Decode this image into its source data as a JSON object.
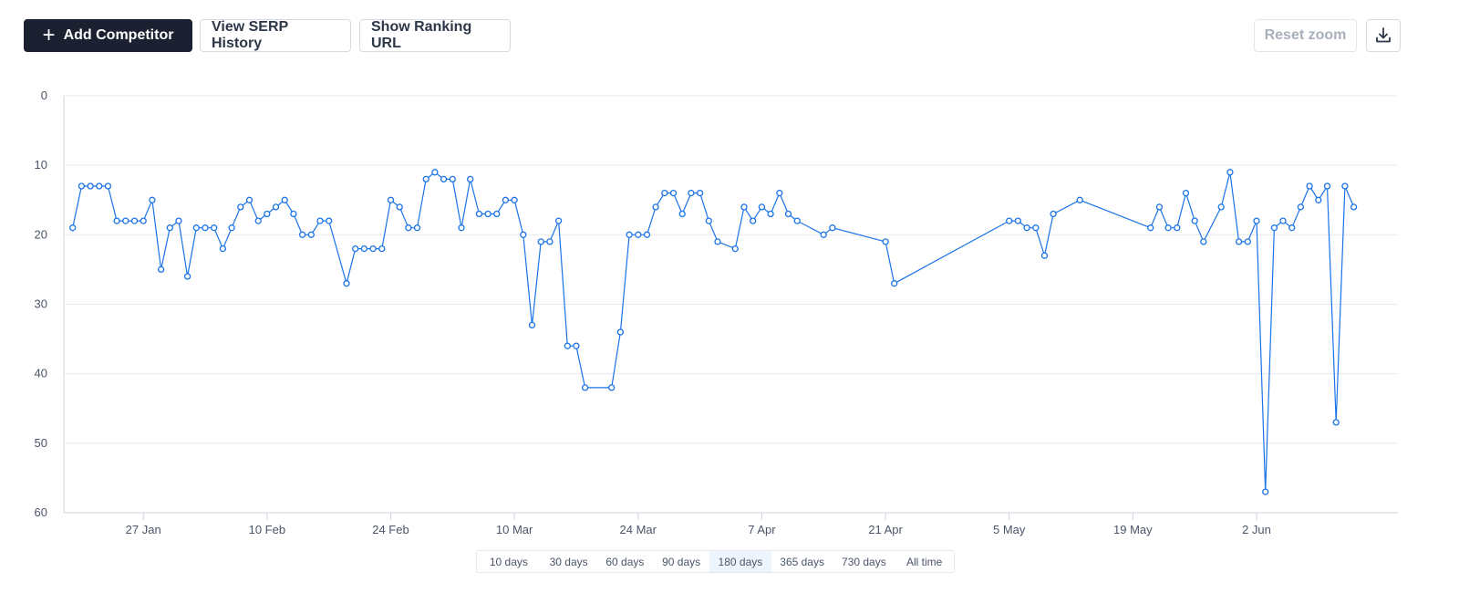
{
  "toolbar": {
    "add_competitor_label": "Add Competitor",
    "serp_history_label": "View SERP History",
    "ranking_url_label": "Show Ranking URL",
    "reset_zoom_label": "Reset zoom",
    "download_icon": "download-icon",
    "add_icon": "plus-icon"
  },
  "colors": {
    "series": "#1a73e8",
    "primary_button": "#1b2131",
    "grid": "#e6e9ee"
  },
  "range_selector": {
    "options": [
      "10 days",
      "30 days",
      "60 days",
      "90 days",
      "180 days",
      "365 days",
      "730 days",
      "All time"
    ],
    "selected": "180 days"
  },
  "chart_data": {
    "type": "line",
    "title": "",
    "xlabel": "",
    "ylabel": "",
    "y_reversed": true,
    "ylim": [
      0,
      60
    ],
    "y_ticks": [
      0,
      10,
      20,
      30,
      40,
      50,
      60
    ],
    "xlim": [
      "2025-01-18",
      "2025-06-18"
    ],
    "x_ticks": [
      {
        "date": "2025-01-27",
        "label": "27 Jan"
      },
      {
        "date": "2025-02-10",
        "label": "10 Feb"
      },
      {
        "date": "2025-02-24",
        "label": "24 Feb"
      },
      {
        "date": "2025-03-10",
        "label": "10 Mar"
      },
      {
        "date": "2025-03-24",
        "label": "24 Mar"
      },
      {
        "date": "2025-04-07",
        "label": "7 Apr"
      },
      {
        "date": "2025-04-21",
        "label": "21 Apr"
      },
      {
        "date": "2025-05-05",
        "label": "5 May"
      },
      {
        "date": "2025-05-19",
        "label": "19 May"
      },
      {
        "date": "2025-06-02",
        "label": "2 Jun"
      }
    ],
    "grid": true,
    "series": [
      {
        "points": [
          [
            "2025-01-19",
            19
          ],
          [
            "2025-01-20",
            13
          ],
          [
            "2025-01-21",
            13
          ],
          [
            "2025-01-22",
            13
          ],
          [
            "2025-01-23",
            13
          ],
          [
            "2025-01-24",
            18
          ],
          [
            "2025-01-25",
            18
          ],
          [
            "2025-01-26",
            18
          ],
          [
            "2025-01-27",
            18
          ],
          [
            "2025-01-28",
            15
          ],
          [
            "2025-01-29",
            25
          ],
          [
            "2025-01-30",
            19
          ],
          [
            "2025-01-31",
            18
          ],
          [
            "2025-02-01",
            26
          ],
          [
            "2025-02-02",
            19
          ],
          [
            "2025-02-03",
            19
          ],
          [
            "2025-02-04",
            19
          ],
          [
            "2025-02-05",
            22
          ],
          [
            "2025-02-06",
            19
          ],
          [
            "2025-02-07",
            16
          ],
          [
            "2025-02-08",
            15
          ],
          [
            "2025-02-09",
            18
          ],
          [
            "2025-02-10",
            17
          ],
          [
            "2025-02-11",
            16
          ],
          [
            "2025-02-12",
            15
          ],
          [
            "2025-02-13",
            17
          ],
          [
            "2025-02-14",
            20
          ],
          [
            "2025-02-15",
            20
          ],
          [
            "2025-02-16",
            18
          ],
          [
            "2025-02-17",
            18
          ],
          [
            "2025-02-19",
            27
          ],
          [
            "2025-02-20",
            22
          ],
          [
            "2025-02-21",
            22
          ],
          [
            "2025-02-22",
            22
          ],
          [
            "2025-02-23",
            22
          ],
          [
            "2025-02-24",
            15
          ],
          [
            "2025-02-25",
            16
          ],
          [
            "2025-02-26",
            19
          ],
          [
            "2025-02-27",
            19
          ],
          [
            "2025-02-28",
            12
          ],
          [
            "2025-03-01",
            11
          ],
          [
            "2025-03-02",
            12
          ],
          [
            "2025-03-03",
            12
          ],
          [
            "2025-03-04",
            19
          ],
          [
            "2025-03-05",
            12
          ],
          [
            "2025-03-06",
            17
          ],
          [
            "2025-03-07",
            17
          ],
          [
            "2025-03-08",
            17
          ],
          [
            "2025-03-09",
            15
          ],
          [
            "2025-03-10",
            15
          ],
          [
            "2025-03-11",
            20
          ],
          [
            "2025-03-12",
            33
          ],
          [
            "2025-03-13",
            21
          ],
          [
            "2025-03-14",
            21
          ],
          [
            "2025-03-15",
            18
          ],
          [
            "2025-03-16",
            36
          ],
          [
            "2025-03-17",
            36
          ],
          [
            "2025-03-18",
            42
          ],
          [
            "2025-03-21",
            42
          ],
          [
            "2025-03-22",
            34
          ],
          [
            "2025-03-23",
            20
          ],
          [
            "2025-03-24",
            20
          ],
          [
            "2025-03-25",
            20
          ],
          [
            "2025-03-26",
            16
          ],
          [
            "2025-03-27",
            14
          ],
          [
            "2025-03-28",
            14
          ],
          [
            "2025-03-29",
            17
          ],
          [
            "2025-03-30",
            14
          ],
          [
            "2025-03-31",
            14
          ],
          [
            "2025-04-01",
            18
          ],
          [
            "2025-04-02",
            21
          ],
          [
            "2025-04-04",
            22
          ],
          [
            "2025-04-05",
            16
          ],
          [
            "2025-04-06",
            18
          ],
          [
            "2025-04-07",
            16
          ],
          [
            "2025-04-08",
            17
          ],
          [
            "2025-04-09",
            14
          ],
          [
            "2025-04-10",
            17
          ],
          [
            "2025-04-11",
            18
          ],
          [
            "2025-04-14",
            20
          ],
          [
            "2025-04-15",
            19
          ],
          [
            "2025-04-21",
            21
          ],
          [
            "2025-04-22",
            27
          ],
          [
            "2025-05-05",
            18
          ],
          [
            "2025-05-06",
            18
          ],
          [
            "2025-05-07",
            19
          ],
          [
            "2025-05-08",
            19
          ],
          [
            "2025-05-09",
            23
          ],
          [
            "2025-05-10",
            17
          ],
          [
            "2025-05-13",
            15
          ],
          [
            "2025-05-21",
            19
          ],
          [
            "2025-05-22",
            16
          ],
          [
            "2025-05-23",
            19
          ],
          [
            "2025-05-24",
            19
          ],
          [
            "2025-05-25",
            14
          ],
          [
            "2025-05-26",
            18
          ],
          [
            "2025-05-27",
            21
          ],
          [
            "2025-05-29",
            16
          ],
          [
            "2025-05-30",
            11
          ],
          [
            "2025-05-31",
            21
          ],
          [
            "2025-06-01",
            21
          ],
          [
            "2025-06-02",
            18
          ],
          [
            "2025-06-03",
            57
          ],
          [
            "2025-06-04",
            19
          ],
          [
            "2025-06-05",
            18
          ],
          [
            "2025-06-06",
            19
          ],
          [
            "2025-06-07",
            16
          ],
          [
            "2025-06-08",
            13
          ],
          [
            "2025-06-09",
            15
          ],
          [
            "2025-06-10",
            13
          ],
          [
            "2025-06-11",
            47
          ],
          [
            "2025-06-12",
            13
          ],
          [
            "2025-06-13",
            16
          ]
        ]
      }
    ]
  }
}
